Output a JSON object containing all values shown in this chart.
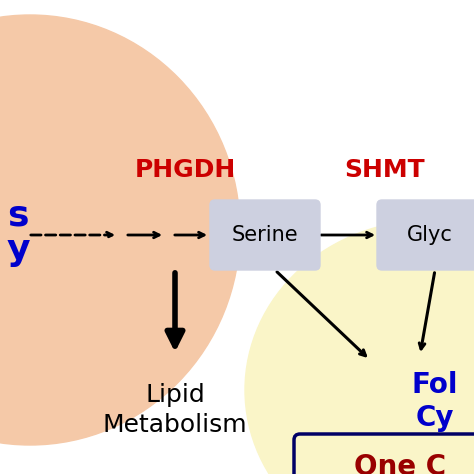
{
  "bg_color": "#ffffff",
  "left_circle_color": "#f5c9a8",
  "right_circle_color": "#faf5c8",
  "serine_box_color": "#cdd0e0",
  "glycine_box_color": "#cdd0e0",
  "phgdh_label": "PHGDH",
  "shmt_label": "SHMT",
  "serine_label": "Serine",
  "glycine_label": "Glyc",
  "lipid_line1": "Lipid",
  "lipid_line2": "Metabolism",
  "folate_line1": "Fol",
  "folate_line2": "Cy",
  "onecarbon_label": "One C",
  "phgdh_color": "#cc0000",
  "shmt_color": "#cc0000",
  "lipid_color": "#000000",
  "folate_color": "#0000cc",
  "onecarbon_color": "#990000",
  "blue_text_color": "#0000cc",
  "one_box_border_color": "#000066",
  "figsize": [
    4.74,
    4.74
  ],
  "dpi": 100
}
